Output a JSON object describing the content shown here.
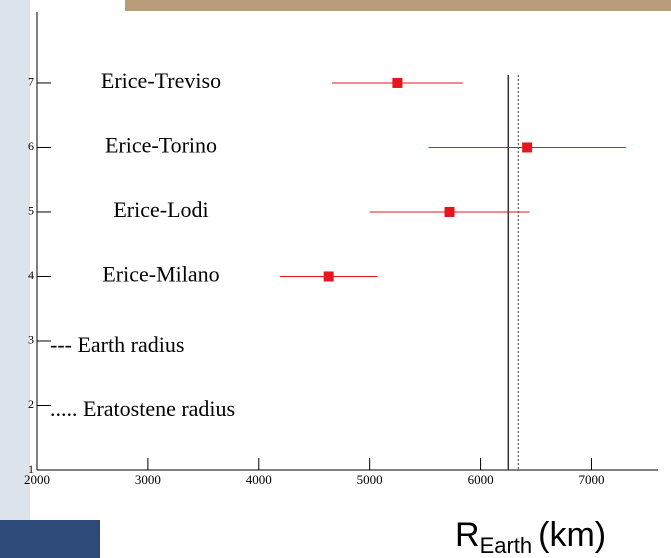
{
  "chart_data": {
    "type": "scatter",
    "x_label": {
      "main": "R",
      "subscript": "Earth",
      "suffix": "(km)"
    },
    "xlim": [
      2000,
      7600
    ],
    "ylim": [
      1,
      8.1
    ],
    "xticks": [
      2000,
      3000,
      4000,
      5000,
      6000,
      7000
    ],
    "yticks": [
      1,
      2,
      3,
      4,
      5,
      6,
      7
    ],
    "series": [
      {
        "name": "Erice-Treviso",
        "color": "#e8141c",
        "x": [
          5250
        ],
        "x_err": [
          590
        ],
        "y": [
          7
        ]
      },
      {
        "name": "Erice-Torino",
        "color": "#e8141c",
        "x": [
          6420
        ],
        "x_err": [
          890
        ],
        "y": [
          6
        ]
      },
      {
        "name": "Erice-Lodi",
        "color": "#e8141c",
        "x": [
          5720
        ],
        "x_err": [
          720
        ],
        "y": [
          5
        ]
      },
      {
        "name": "Erice-Milano",
        "color": "#e8141c",
        "x": [
          4630
        ],
        "x_err": [
          440
        ],
        "y": [
          4
        ]
      }
    ],
    "reference_lines": [
      {
        "label": "--- Earth radius",
        "x": 6250,
        "style": "solid"
      },
      {
        "label": "..... Eratostene radius",
        "x": 6340,
        "style": "dotted"
      }
    ]
  }
}
